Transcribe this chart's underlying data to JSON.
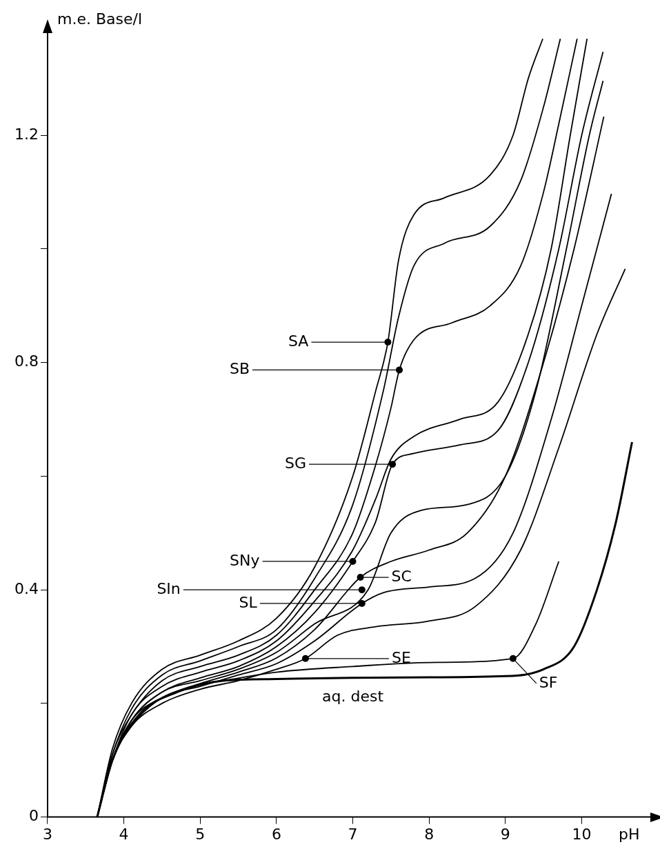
{
  "chart_data": {
    "type": "line",
    "xlabel": "pH",
    "ylabel": "m.e. Base/l",
    "xlim": [
      3,
      10.9
    ],
    "ylim": [
      0,
      1.38
    ],
    "xticks": [
      3,
      4,
      5,
      6,
      7,
      8,
      9,
      10
    ],
    "yticks": [
      0,
      {
        "value": 0.2,
        "label": null
      },
      0.4,
      {
        "value": 0.6,
        "label": null
      },
      0.8,
      {
        "value": 1.0,
        "label": null
      },
      1.2
    ],
    "grid": false,
    "legend": false,
    "marker": "none",
    "line_style": "solid",
    "series": [
      {
        "color": "#000000",
        "x": [
          3.65,
          3.85,
          4.1,
          4.5,
          5,
          5.5,
          6,
          6.5,
          7,
          7.3,
          7.46,
          7.6,
          7.8,
          8.2,
          8.8,
          9.1,
          9.3,
          9.49
        ],
        "values": [
          0,
          0.12,
          0.2,
          0.26,
          0.285,
          0.31,
          0.35,
          0.44,
          0.6,
          0.75,
          0.836,
          0.98,
          1.06,
          1.09,
          1.13,
          1.2,
          1.3,
          1.37
        ]
      },
      {
        "color": "#000000",
        "x": [
          3.65,
          3.85,
          4.1,
          4.5,
          5,
          5.5,
          6,
          6.5,
          7,
          7.4,
          7.6,
          7.8,
          8.2,
          8.8,
          9.2,
          9.5,
          9.72
        ],
        "values": [
          0,
          0.11,
          0.19,
          0.25,
          0.275,
          0.3,
          0.33,
          0.42,
          0.55,
          0.75,
          0.88,
          0.97,
          1.01,
          1.04,
          1.12,
          1.25,
          1.37
        ]
      },
      {
        "color": "#000000",
        "x": [
          3.65,
          3.85,
          4.1,
          4.5,
          5,
          5.5,
          6,
          6.5,
          7,
          7.3,
          7.5,
          7.61,
          7.8,
          8.3,
          8.8,
          9.2,
          9.5,
          9.7,
          9.94
        ],
        "values": [
          0,
          0.11,
          0.18,
          0.24,
          0.265,
          0.285,
          0.32,
          0.4,
          0.5,
          0.62,
          0.72,
          0.787,
          0.84,
          0.87,
          0.9,
          0.97,
          1.1,
          1.22,
          1.37
        ]
      },
      {
        "color": "#000000",
        "x": [
          3.65,
          3.85,
          4.1,
          4.5,
          5,
          5.5,
          6,
          6.5,
          7,
          7.3,
          7.5,
          7.8,
          8.4,
          8.9,
          9.3,
          9.6,
          9.85,
          10.07
        ],
        "values": [
          0,
          0.1,
          0.18,
          0.23,
          0.255,
          0.275,
          0.31,
          0.38,
          0.47,
          0.56,
          0.63,
          0.67,
          0.7,
          0.73,
          0.85,
          1.0,
          1.2,
          1.37
        ]
      },
      {
        "color": "#000000",
        "x": [
          3.65,
          3.85,
          4.1,
          4.5,
          5,
          5.5,
          6,
          6.5,
          7,
          7.3,
          7.52,
          7.8,
          8.4,
          8.9,
          9.3,
          9.7,
          10,
          10.28
        ],
        "values": [
          0,
          0.1,
          0.17,
          0.22,
          0.245,
          0.265,
          0.3,
          0.36,
          0.45,
          0.52,
          0.621,
          0.64,
          0.655,
          0.68,
          0.8,
          1.0,
          1.2,
          1.347
        ]
      },
      {
        "color": "#000000",
        "x": [
          3.65,
          3.85,
          4.1,
          4.5,
          5,
          5.5,
          6,
          6.5,
          7.2,
          7.5,
          7.9,
          8.5,
          9,
          9.4,
          9.8,
          10.1,
          10.28
        ],
        "values": [
          0,
          0.1,
          0.17,
          0.22,
          0.24,
          0.26,
          0.29,
          0.34,
          0.4,
          0.5,
          0.54,
          0.55,
          0.6,
          0.75,
          1.0,
          1.2,
          1.296
        ]
      },
      {
        "color": "#000000",
        "x": [
          3.65,
          3.85,
          4.1,
          4.5,
          5,
          5.5,
          6,
          6.5,
          7.1,
          7.5,
          8,
          8.5,
          9,
          9.5,
          9.9,
          10.29
        ],
        "values": [
          0,
          0.1,
          0.17,
          0.21,
          0.235,
          0.255,
          0.28,
          0.33,
          0.422,
          0.45,
          0.47,
          0.5,
          0.6,
          0.8,
          1.0,
          1.233
        ]
      },
      {
        "color": "#000000",
        "x": [
          3.65,
          3.85,
          4.1,
          4.5,
          5,
          5.5,
          6,
          6.5,
          7.12,
          7.4,
          8,
          8.6,
          9.1,
          9.6,
          10,
          10.39
        ],
        "values": [
          0,
          0.1,
          0.16,
          0.21,
          0.23,
          0.25,
          0.27,
          0.31,
          0.376,
          0.395,
          0.405,
          0.42,
          0.5,
          0.7,
          0.9,
          1.097
        ]
      },
      {
        "color": "#000000",
        "x": [
          3.65,
          3.85,
          4.1,
          4.5,
          5,
          5.5,
          6,
          6.38,
          6.8,
          7.3,
          8,
          8.6,
          9.2,
          9.7,
          10.2,
          10.57
        ],
        "values": [
          0,
          0.1,
          0.16,
          0.2,
          0.225,
          0.24,
          0.26,
          0.279,
          0.32,
          0.335,
          0.345,
          0.37,
          0.47,
          0.65,
          0.85,
          0.965
        ]
      },
      {
        "color": "#000000",
        "x": [
          5.3,
          6,
          7,
          8,
          9.1,
          9.4,
          9.7
        ],
        "values": [
          0.24,
          0.255,
          0.265,
          0.272,
          0.279,
          0.34,
          0.45
        ]
      },
      {
        "color": "#000000",
        "x": [
          3.65,
          3.85,
          4.2,
          4.7,
          5.3,
          6,
          7,
          8,
          9,
          9.5,
          9.9,
          10.2,
          10.45,
          10.66
        ],
        "values": [
          0,
          0.1,
          0.18,
          0.22,
          0.24,
          0.243,
          0.245,
          0.246,
          0.248,
          0.26,
          0.3,
          0.4,
          0.52,
          0.66
        ]
      }
    ],
    "annotations": [
      {
        "text": "SA",
        "x": 7.46,
        "y": 0.836
      },
      {
        "text": "SB",
        "x": 7.61,
        "y": 0.787
      },
      {
        "text": "SG",
        "x": 7.52,
        "y": 0.621
      },
      {
        "text": "SNy",
        "x": 7.0,
        "y": 0.45
      },
      {
        "text": "SC",
        "x": 7.1,
        "y": 0.422
      },
      {
        "text": "SIn",
        "x": 7.12,
        "y": 0.4
      },
      {
        "text": "SL",
        "x": 7.12,
        "y": 0.376
      },
      {
        "text": "SE",
        "x": 6.38,
        "y": 0.279
      },
      {
        "text": "SF",
        "x": 9.1,
        "y": 0.279
      },
      {
        "text": "aq. dest",
        "x": 7.0,
        "y": 0.245
      }
    ]
  }
}
